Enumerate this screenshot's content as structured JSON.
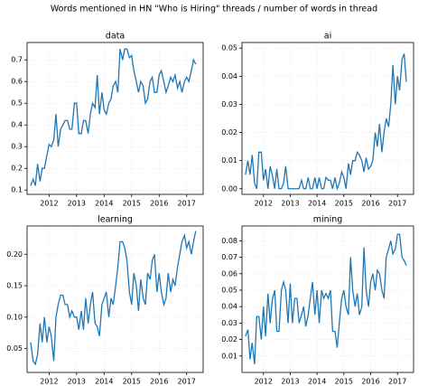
{
  "suptitle": "Words mentioned in HN \"Who is Hiring\" threads / number of words in thread",
  "chart_data": [
    {
      "type": "line",
      "title": "data",
      "xlim": [
        2011.2,
        2017.6
      ],
      "xticks": [
        2012,
        2013,
        2014,
        2015,
        2016,
        2017
      ],
      "ylim": [
        0.08,
        0.78
      ],
      "yticks": [
        0.1,
        0.2,
        0.3,
        0.4,
        0.5,
        0.6,
        0.7
      ],
      "grid": true,
      "x": [
        2011.33,
        2011.42,
        2011.5,
        2011.58,
        2011.67,
        2011.75,
        2011.83,
        2011.92,
        2012,
        2012.08,
        2012.17,
        2012.25,
        2012.33,
        2012.42,
        2012.5,
        2012.58,
        2012.67,
        2012.75,
        2012.83,
        2012.92,
        2013,
        2013.08,
        2013.17,
        2013.25,
        2013.33,
        2013.42,
        2013.5,
        2013.58,
        2013.67,
        2013.75,
        2013.83,
        2013.92,
        2014,
        2014.08,
        2014.17,
        2014.25,
        2014.33,
        2014.42,
        2014.5,
        2014.58,
        2014.67,
        2014.75,
        2014.83,
        2014.92,
        2015,
        2015.08,
        2015.17,
        2015.25,
        2015.33,
        2015.42,
        2015.5,
        2015.58,
        2015.67,
        2015.75,
        2015.83,
        2015.92,
        2016,
        2016.08,
        2016.17,
        2016.25,
        2016.33,
        2016.42,
        2016.5,
        2016.58,
        2016.67,
        2016.75,
        2016.83,
        2016.92,
        2017,
        2017.08,
        2017.17,
        2017.25,
        2017.33
      ],
      "series": [
        {
          "color": "#1f77b4",
          "values": [
            0.12,
            0.15,
            0.12,
            0.22,
            0.14,
            0.2,
            0.2,
            0.26,
            0.31,
            0.3,
            0.33,
            0.45,
            0.3,
            0.38,
            0.4,
            0.42,
            0.42,
            0.38,
            0.38,
            0.5,
            0.5,
            0.36,
            0.36,
            0.42,
            0.42,
            0.36,
            0.45,
            0.5,
            0.48,
            0.63,
            0.45,
            0.55,
            0.47,
            0.45,
            0.5,
            0.52,
            0.58,
            0.6,
            0.55,
            0.75,
            0.7,
            0.75,
            0.75,
            0.71,
            0.72,
            0.65,
            0.6,
            0.55,
            0.6,
            0.58,
            0.5,
            0.52,
            0.6,
            0.62,
            0.55,
            0.55,
            0.63,
            0.65,
            0.6,
            0.55,
            0.58,
            0.62,
            0.6,
            0.63,
            0.57,
            0.6,
            0.55,
            0.6,
            0.62,
            0.6,
            0.65,
            0.7,
            0.68
          ]
        }
      ]
    },
    {
      "type": "line",
      "title": "ai",
      "xlim": [
        2011.2,
        2017.6
      ],
      "xticks": [
        2012,
        2013,
        2014,
        2015,
        2016,
        2017
      ],
      "ylim": [
        -0.002,
        0.052
      ],
      "yticks": [
        {
          "value": 0,
          "label": "0.00"
        },
        {
          "value": 0.01,
          "label": "0.01"
        },
        {
          "value": 0.02,
          "label": "0.02"
        },
        {
          "value": 0.03,
          "label": "0.03"
        },
        {
          "value": 0.04,
          "label": "0.04"
        },
        {
          "value": 0.05,
          "label": "0.05"
        }
      ],
      "grid": true,
      "x": [
        2011.33,
        2011.42,
        2011.5,
        2011.58,
        2011.67,
        2011.75,
        2011.83,
        2011.92,
        2012,
        2012.08,
        2012.17,
        2012.25,
        2012.33,
        2012.42,
        2012.5,
        2012.58,
        2012.67,
        2012.75,
        2012.83,
        2012.92,
        2013,
        2013.08,
        2013.17,
        2013.25,
        2013.33,
        2013.42,
        2013.5,
        2013.58,
        2013.67,
        2013.75,
        2013.83,
        2013.92,
        2014,
        2014.08,
        2014.17,
        2014.25,
        2014.33,
        2014.42,
        2014.5,
        2014.58,
        2014.67,
        2014.75,
        2014.83,
        2014.92,
        2015,
        2015.08,
        2015.17,
        2015.25,
        2015.33,
        2015.42,
        2015.5,
        2015.58,
        2015.67,
        2015.75,
        2015.83,
        2015.92,
        2016,
        2016.08,
        2016.17,
        2016.25,
        2016.33,
        2016.42,
        2016.5,
        2016.58,
        2016.67,
        2016.75,
        2016.83,
        2016.92,
        2017,
        2017.08,
        2017.17,
        2017.25,
        2017.33
      ],
      "series": [
        {
          "color": "#1f77b4",
          "values": [
            0.005,
            0.01,
            0.005,
            0.012,
            0.002,
            0,
            0.013,
            0.013,
            0.003,
            0.007,
            0,
            0.008,
            0.005,
            0,
            0.007,
            0,
            0,
            0.002,
            0.008,
            0,
            0,
            0,
            0,
            0,
            0,
            0.003,
            0,
            0,
            0.004,
            0,
            0,
            0.004,
            0,
            0.004,
            0,
            0,
            0.004,
            0.003,
            0.003,
            0,
            0.004,
            0,
            0.002,
            0.006,
            0.004,
            0,
            0.009,
            0.005,
            0.01,
            0.01,
            0.013,
            0.012,
            0.01,
            0.006,
            0.011,
            0.007,
            0.008,
            0.01,
            0.02,
            0.015,
            0.023,
            0.013,
            0.02,
            0.025,
            0.022,
            0.03,
            0.044,
            0.03,
            0.04,
            0.035,
            0.046,
            0.048,
            0.038
          ]
        }
      ]
    },
    {
      "type": "line",
      "title": "learning",
      "xlim": [
        2011.2,
        2017.6
      ],
      "xticks": [
        2012,
        2013,
        2014,
        2015,
        2016,
        2017
      ],
      "ylim": [
        0.012,
        0.245
      ],
      "yticks": [
        0.05,
        {
          "value": 0.1,
          "label": "0.10"
        },
        0.15,
        {
          "value": 0.2,
          "label": "0.20"
        }
      ],
      "grid": true,
      "x": [
        2011.33,
        2011.42,
        2011.5,
        2011.58,
        2011.67,
        2011.75,
        2011.83,
        2011.92,
        2012,
        2012.08,
        2012.17,
        2012.25,
        2012.33,
        2012.42,
        2012.5,
        2012.58,
        2012.67,
        2012.75,
        2012.83,
        2012.92,
        2013,
        2013.08,
        2013.17,
        2013.25,
        2013.33,
        2013.42,
        2013.5,
        2013.58,
        2013.67,
        2013.75,
        2013.83,
        2013.92,
        2014,
        2014.08,
        2014.17,
        2014.25,
        2014.33,
        2014.42,
        2014.5,
        2014.58,
        2014.67,
        2014.75,
        2014.83,
        2014.92,
        2015,
        2015.08,
        2015.17,
        2015.25,
        2015.33,
        2015.42,
        2015.5,
        2015.58,
        2015.67,
        2015.75,
        2015.83,
        2015.92,
        2016,
        2016.08,
        2016.17,
        2016.25,
        2016.33,
        2016.42,
        2016.5,
        2016.58,
        2016.67,
        2016.75,
        2016.83,
        2016.92,
        2017,
        2017.08,
        2017.17,
        2017.25,
        2017.33
      ],
      "series": [
        {
          "color": "#1f77b4",
          "values": [
            0.06,
            0.03,
            0.025,
            0.04,
            0.09,
            0.06,
            0.1,
            0.06,
            0.085,
            0.07,
            0.03,
            0.1,
            0.12,
            0.135,
            0.135,
            0.12,
            0.12,
            0.1,
            0.11,
            0.1,
            0.1,
            0.08,
            0.11,
            0.08,
            0.13,
            0.09,
            0.12,
            0.14,
            0.09,
            0.085,
            0.07,
            0.12,
            0.13,
            0.14,
            0.1,
            0.13,
            0.12,
            0.15,
            0.18,
            0.22,
            0.22,
            0.21,
            0.19,
            0.14,
            0.12,
            0.17,
            0.15,
            0.11,
            0.16,
            0.13,
            0.12,
            0.17,
            0.16,
            0.19,
            0.2,
            0.14,
            0.17,
            0.14,
            0.12,
            0.13,
            0.17,
            0.14,
            0.16,
            0.15,
            0.18,
            0.2,
            0.22,
            0.23,
            0.21,
            0.22,
            0.2,
            0.22,
            0.237
          ]
        }
      ]
    },
    {
      "type": "line",
      "title": "mining",
      "xlim": [
        2011.2,
        2017.6
      ],
      "xticks": [
        2012,
        2013,
        2014,
        2015,
        2016,
        2017
      ],
      "ylim": [
        0.0,
        0.089
      ],
      "yticks": [
        0.01,
        0.02,
        0.03,
        0.04,
        0.05,
        0.06,
        0.07,
        0.08
      ],
      "grid": true,
      "x": [
        2011.33,
        2011.42,
        2011.5,
        2011.58,
        2011.67,
        2011.75,
        2011.83,
        2011.92,
        2012,
        2012.08,
        2012.17,
        2012.25,
        2012.33,
        2012.42,
        2012.5,
        2012.58,
        2012.67,
        2012.75,
        2012.83,
        2012.92,
        2013,
        2013.08,
        2013.17,
        2013.25,
        2013.33,
        2013.42,
        2013.5,
        2013.58,
        2013.67,
        2013.75,
        2013.83,
        2013.92,
        2014,
        2014.08,
        2014.17,
        2014.25,
        2014.33,
        2014.42,
        2014.5,
        2014.58,
        2014.67,
        2014.75,
        2014.83,
        2014.92,
        2015,
        2015.08,
        2015.17,
        2015.25,
        2015.33,
        2015.42,
        2015.5,
        2015.58,
        2015.67,
        2015.75,
        2015.83,
        2015.92,
        2016,
        2016.08,
        2016.17,
        2016.25,
        2016.33,
        2016.42,
        2016.5,
        2016.58,
        2016.67,
        2016.75,
        2016.83,
        2016.92,
        2017,
        2017.08,
        2017.17,
        2017.25,
        2017.33
      ],
      "series": [
        {
          "color": "#1f77b4",
          "values": [
            0.022,
            0.026,
            0.008,
            0.018,
            0.005,
            0.034,
            0.034,
            0.02,
            0.04,
            0.022,
            0.048,
            0.03,
            0.044,
            0.05,
            0.025,
            0.025,
            0.05,
            0.055,
            0.05,
            0.03,
            0.054,
            0.03,
            0.045,
            0.045,
            0.03,
            0.035,
            0.04,
            0.028,
            0.035,
            0.045,
            0.055,
            0.035,
            0.05,
            0.03,
            0.05,
            0.045,
            0.048,
            0.045,
            0.05,
            0.025,
            0.025,
            0.015,
            0.03,
            0.045,
            0.05,
            0.04,
            0.035,
            0.07,
            0.05,
            0.04,
            0.048,
            0.035,
            0.04,
            0.076,
            0.05,
            0.04,
            0.055,
            0.06,
            0.05,
            0.062,
            0.06,
            0.05,
            0.045,
            0.07,
            0.075,
            0.08,
            0.072,
            0.075,
            0.084,
            0.084,
            0.07,
            0.068,
            0.065
          ]
        }
      ]
    }
  ]
}
